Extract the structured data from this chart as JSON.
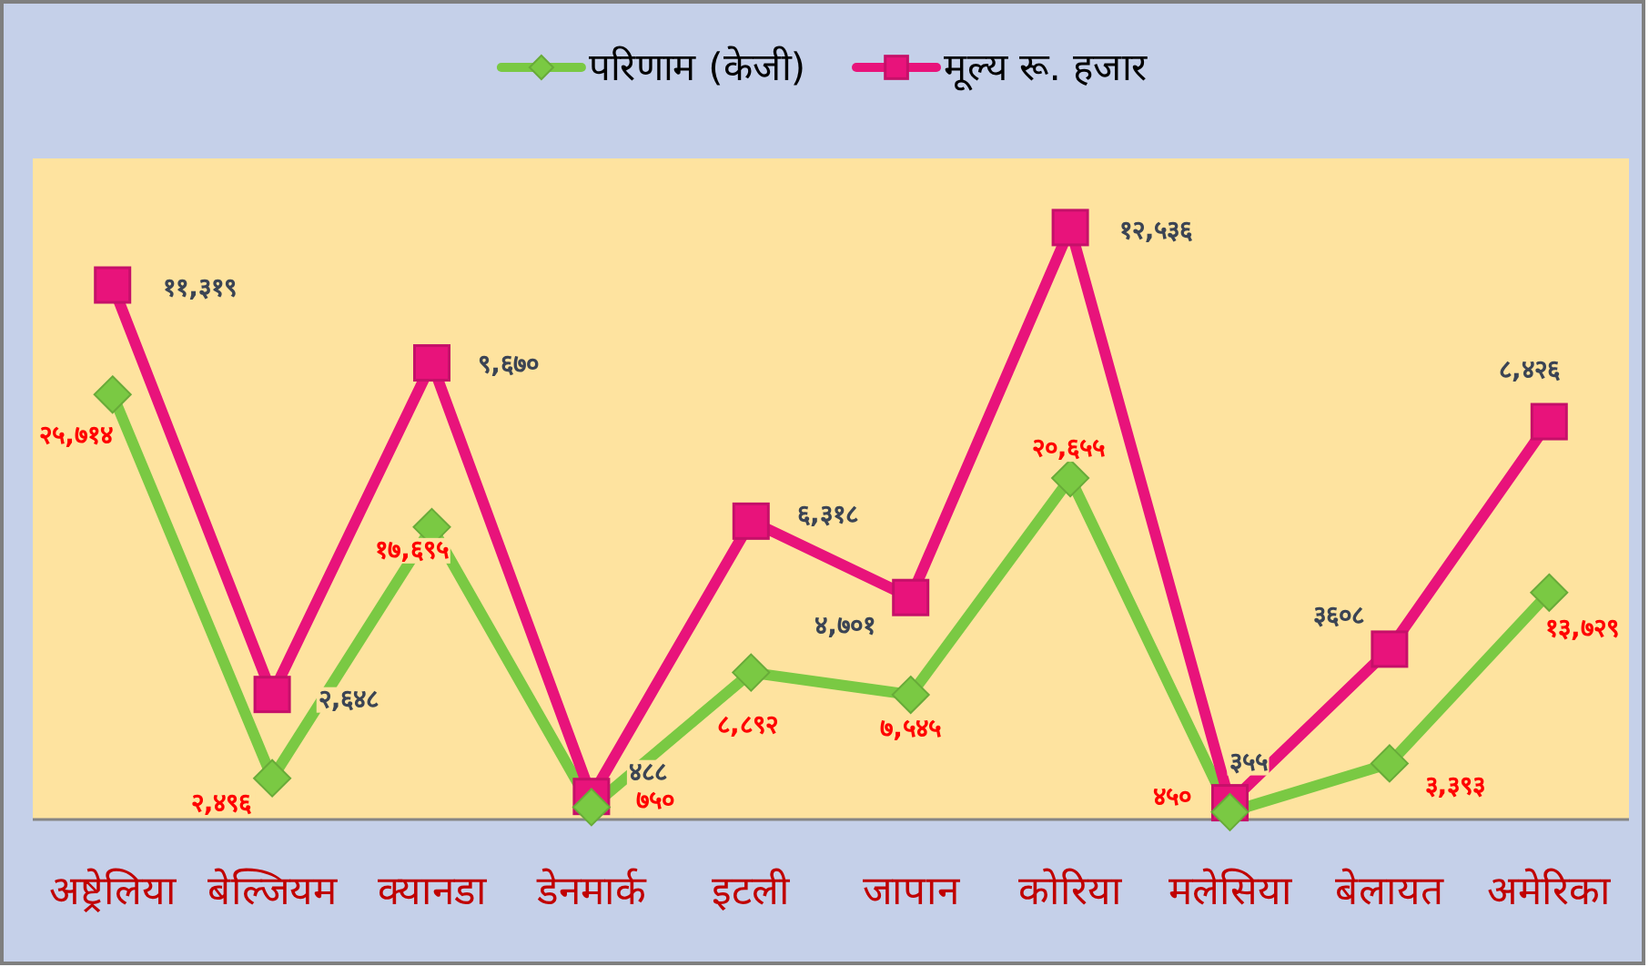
{
  "chart_data": {
    "type": "line",
    "categories": [
      "अष्ट्रेलिया",
      "बेल्जियम",
      "क्यानडा",
      "डेनमार्क",
      "इटली",
      "जापान",
      "कोरिया",
      "मलेसिया",
      "बेलायत",
      "अमेरिका"
    ],
    "series": [
      {
        "name": "परिणाम (केजी)",
        "color": "#7ac943",
        "marker": "diamond",
        "values": [
          25714,
          2496,
          17695,
          750,
          8892,
          7545,
          20655,
          450,
          3393,
          13729
        ],
        "value_labels": [
          "२५,७१४",
          "२,४९६",
          "१७,६९५",
          "७५०",
          "८,८९२",
          "७,५४५",
          "२०,६५५",
          "४५०",
          "३,३९३",
          "१३,७२९"
        ]
      },
      {
        "name": "मूल्य रू. हजार",
        "color": "#e8137b",
        "marker": "square",
        "axis": "y2",
        "values": [
          11319,
          2648,
          9670,
          488,
          6318,
          4701,
          12536,
          355,
          3608,
          8426
        ],
        "value_labels": [
          "११,३१९",
          "२,६४८",
          "९,६७०",
          "४८८",
          "६,३१८",
          "४,७०१",
          "१२,५३६",
          "३५५",
          "३६०८",
          "८,४२६"
        ]
      }
    ],
    "ylim": [
      0,
      40000
    ],
    "y2lim": [
      0,
      14000
    ],
    "tick_labels": "x",
    "legend": "top"
  }
}
